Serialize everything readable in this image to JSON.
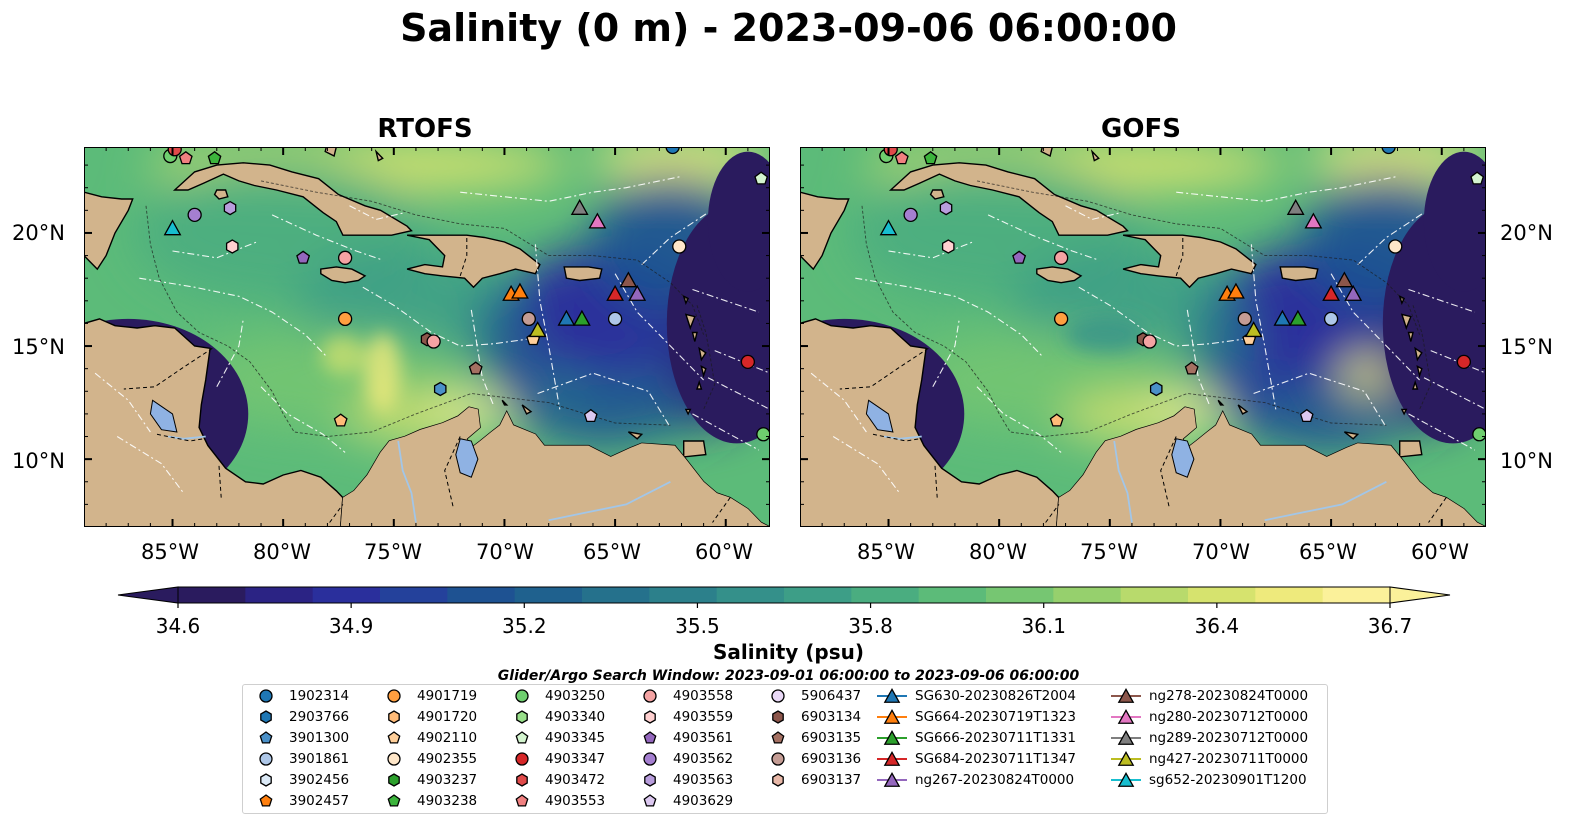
{
  "title": "Salinity (0 m) - 2023-09-06 06:00:00",
  "panels": [
    {
      "title": "RTOFS"
    },
    {
      "title": "GOFS"
    }
  ],
  "lat_ticks": [
    "20°N",
    "15°N",
    "10°N"
  ],
  "lon_ticks": [
    "85°W",
    "80°W",
    "75°W",
    "70°W",
    "65°W",
    "60°W"
  ],
  "colorbar": {
    "label": "Salinity (psu)",
    "ticks": [
      "34.6",
      "34.9",
      "35.2",
      "35.5",
      "35.8",
      "36.1",
      "36.4",
      "36.7"
    ],
    "colors": [
      "#2a1b5e",
      "#2b2384",
      "#2a2f9c",
      "#24419b",
      "#1e5292",
      "#1f618e",
      "#25718c",
      "#2c808b",
      "#34908a",
      "#3d9e87",
      "#4aad80",
      "#5cbb79",
      "#76c672",
      "#96d06d",
      "#b8da6c",
      "#d6e36e",
      "#eeea7c",
      "#fbf19a"
    ],
    "range": [
      34.6,
      36.7
    ],
    "extend": "both"
  },
  "colors": {
    "land": "#d2b48c",
    "deep_ocean": "#2a1b5e",
    "lake": "#8fb2e3"
  },
  "search_window": "Glider/Argo Search Window: 2023-09-01 06:00:00 to 2023-09-06 06:00:00",
  "legend": {
    "columns": [
      [
        {
          "label": "1902314",
          "marker": "circle",
          "color": "#1f77b4"
        },
        {
          "label": "2903766",
          "marker": "hexagon",
          "color": "#1f77b4"
        },
        {
          "label": "3901300",
          "marker": "pentagon",
          "color": "#4a90c8"
        },
        {
          "label": "3901861",
          "marker": "circle",
          "color": "#aec7e8"
        },
        {
          "label": "3902456",
          "marker": "hexagon",
          "color": "#dceaf7"
        },
        {
          "label": "3902457",
          "marker": "pentagon",
          "color": "#ff7f0e"
        }
      ],
      [
        {
          "label": "4901719",
          "marker": "circle",
          "color": "#ff9f40"
        },
        {
          "label": "4901720",
          "marker": "hexagon",
          "color": "#ffbb78"
        },
        {
          "label": "4902110",
          "marker": "pentagon",
          "color": "#ffcf9a"
        },
        {
          "label": "4902355",
          "marker": "circle",
          "color": "#ffe7c9"
        },
        {
          "label": "4903237",
          "marker": "hexagon",
          "color": "#2ca02c"
        },
        {
          "label": "4903238",
          "marker": "pentagon",
          "color": "#3cb43c"
        }
      ],
      [
        {
          "label": "4903250",
          "marker": "circle",
          "color": "#6fcf6f"
        },
        {
          "label": "4903340",
          "marker": "hexagon",
          "color": "#98df8a"
        },
        {
          "label": "4903345",
          "marker": "pentagon",
          "color": "#d4f5cf"
        },
        {
          "label": "4903347",
          "marker": "circle",
          "color": "#d62728"
        },
        {
          "label": "4903472",
          "marker": "hexagon",
          "color": "#e04a4a"
        },
        {
          "label": "4903553",
          "marker": "pentagon",
          "color": "#f08080"
        }
      ],
      [
        {
          "label": "4903558",
          "marker": "circle",
          "color": "#f4a3a3"
        },
        {
          "label": "4903559",
          "marker": "hexagon",
          "color": "#ffd0d0"
        },
        {
          "label": "4903561",
          "marker": "pentagon",
          "color": "#9467bd"
        },
        {
          "label": "4903562",
          "marker": "circle",
          "color": "#a57fd0"
        },
        {
          "label": "4903563",
          "marker": "hexagon",
          "color": "#b89ddc"
        },
        {
          "label": "4903629",
          "marker": "pentagon",
          "color": "#dcc8f0"
        }
      ],
      [
        {
          "label": "5906437",
          "marker": "circle",
          "color": "#ead9f7"
        },
        {
          "label": "6903134",
          "marker": "hexagon",
          "color": "#8c564b"
        },
        {
          "label": "6903135",
          "marker": "pentagon",
          "color": "#a47062"
        },
        {
          "label": "6903136",
          "marker": "circle",
          "color": "#c49c94"
        },
        {
          "label": "6903137",
          "marker": "hexagon",
          "color": "#e8b8a8"
        }
      ],
      [
        {
          "label": "SG630-20230826T2004",
          "marker": "triangle-line",
          "color": "#1f77b4"
        },
        {
          "label": "SG664-20230719T1323",
          "marker": "triangle-line",
          "color": "#ff7f0e"
        },
        {
          "label": "SG666-20230711T1331",
          "marker": "triangle-line",
          "color": "#2ca02c"
        },
        {
          "label": "SG684-20230711T1347",
          "marker": "triangle-line",
          "color": "#d62728"
        },
        {
          "label": "ng267-20230824T0000",
          "marker": "triangle-line",
          "color": "#9467bd"
        }
      ],
      [
        {
          "label": "ng278-20230824T0000",
          "marker": "triangle-line",
          "color": "#8c564b"
        },
        {
          "label": "ng280-20230712T0000",
          "marker": "triangle-line",
          "color": "#e377c2"
        },
        {
          "label": "ng289-20230712T0000",
          "marker": "triangle-line",
          "color": "#7f7f7f"
        },
        {
          "label": "ng427-20230711T0000",
          "marker": "triangle-line",
          "color": "#bcbd22"
        },
        {
          "label": "sg652-20230901T1200",
          "marker": "triangle-line",
          "color": "#17becf"
        }
      ]
    ]
  },
  "map_markers": [
    {
      "lon": -85.1,
      "lat": 23.4,
      "marker": "circle",
      "color": "#6fcf6f"
    },
    {
      "lon": -84.9,
      "lat": 23.7,
      "marker": "circle",
      "color": "#e04a4a"
    },
    {
      "lon": -84.4,
      "lat": 23.3,
      "marker": "pentagon",
      "color": "#f08080"
    },
    {
      "lon": -83.1,
      "lat": 23.3,
      "marker": "pentagon",
      "color": "#3cb43c"
    },
    {
      "lon": -62.4,
      "lat": 23.8,
      "marker": "circle",
      "color": "#1f77b4"
    },
    {
      "lon": -84.0,
      "lat": 20.8,
      "marker": "circle",
      "color": "#a57fd0"
    },
    {
      "lon": -82.4,
      "lat": 21.1,
      "marker": "hexagon",
      "color": "#b89ddc"
    },
    {
      "lon": -85.0,
      "lat": 20.2,
      "marker": "triangle",
      "color": "#17becf"
    },
    {
      "lon": -82.3,
      "lat": 19.4,
      "marker": "hexagon",
      "color": "#ffd0d0"
    },
    {
      "lon": -79.1,
      "lat": 18.9,
      "marker": "pentagon",
      "color": "#9467bd"
    },
    {
      "lon": -77.2,
      "lat": 18.9,
      "marker": "circle",
      "color": "#f4a3a3"
    },
    {
      "lon": -77.2,
      "lat": 16.2,
      "marker": "circle",
      "color": "#ff9f40"
    },
    {
      "lon": -77.4,
      "lat": 11.7,
      "marker": "pentagon",
      "color": "#ffbb78"
    },
    {
      "lon": -73.5,
      "lat": 15.3,
      "marker": "hexagon",
      "color": "#8c564b"
    },
    {
      "lon": -73.2,
      "lat": 15.2,
      "marker": "circle",
      "color": "#f4a3a3"
    },
    {
      "lon": -72.9,
      "lat": 13.1,
      "marker": "hexagon",
      "color": "#4a90c8"
    },
    {
      "lon": -71.3,
      "lat": 14.0,
      "marker": "pentagon",
      "color": "#a47062"
    },
    {
      "lon": -69.7,
      "lat": 17.3,
      "marker": "triangle",
      "color": "#ff7f0e"
    },
    {
      "lon": -69.3,
      "lat": 17.4,
      "marker": "triangle",
      "color": "#ff7f0e"
    },
    {
      "lon": -68.9,
      "lat": 16.2,
      "marker": "circle",
      "color": "#c49c94"
    },
    {
      "lon": -68.7,
      "lat": 15.3,
      "marker": "pentagon",
      "color": "#ffcf9a"
    },
    {
      "lon": -68.5,
      "lat": 15.7,
      "marker": "triangle",
      "color": "#bcbd22"
    },
    {
      "lon": -67.2,
      "lat": 16.2,
      "marker": "triangle",
      "color": "#1f77b4"
    },
    {
      "lon": -66.5,
      "lat": 16.2,
      "marker": "triangle",
      "color": "#2ca02c"
    },
    {
      "lon": -66.6,
      "lat": 21.1,
      "marker": "triangle",
      "color": "#7f7f7f"
    },
    {
      "lon": -65.8,
      "lat": 20.5,
      "marker": "triangle",
      "color": "#e377c2"
    },
    {
      "lon": -65.0,
      "lat": 17.3,
      "marker": "triangle",
      "color": "#d62728"
    },
    {
      "lon": -64.4,
      "lat": 17.9,
      "marker": "triangle",
      "color": "#8c564b"
    },
    {
      "lon": -64.0,
      "lat": 17.3,
      "marker": "triangle",
      "color": "#9467bd"
    },
    {
      "lon": -62.1,
      "lat": 19.4,
      "marker": "circle",
      "color": "#ffe7c9"
    },
    {
      "lon": -65.0,
      "lat": 16.2,
      "marker": "circle",
      "color": "#aec7e8"
    },
    {
      "lon": -66.1,
      "lat": 11.9,
      "marker": "pentagon",
      "color": "#dcc8f0"
    },
    {
      "lon": -59.0,
      "lat": 14.3,
      "marker": "circle",
      "color": "#d62728"
    },
    {
      "lon": -58.3,
      "lat": 11.1,
      "marker": "circle",
      "color": "#6fcf6f"
    },
    {
      "lon": -58.4,
      "lat": 22.4,
      "marker": "pentagon",
      "color": "#d4f5cf"
    }
  ]
}
